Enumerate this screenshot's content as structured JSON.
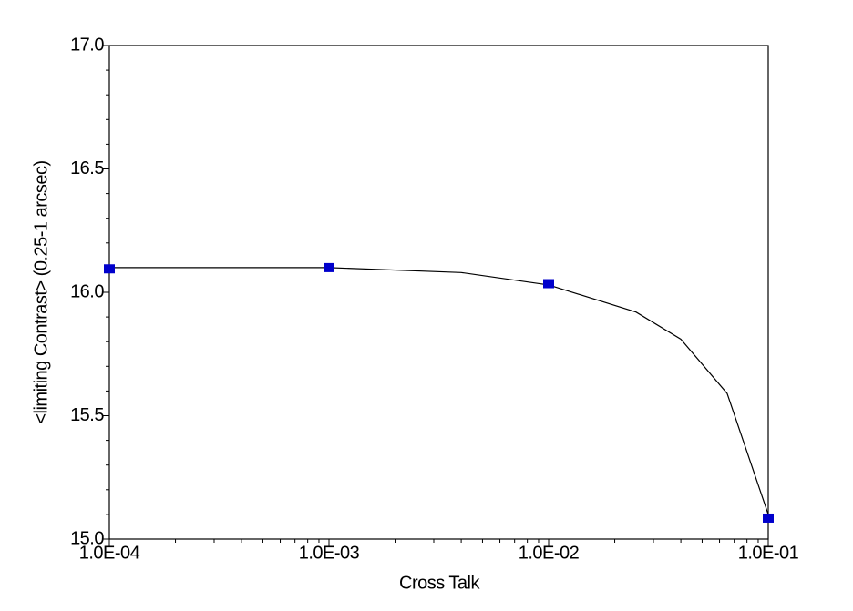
{
  "chart_data": {
    "type": "line",
    "x_label": "Cross Talk",
    "y_label": "<limiting Contrast> (0.25-1 arcsec)",
    "xscale": "log",
    "xlim": [
      0.0001,
      0.1
    ],
    "ylim": [
      15.0,
      17.0
    ],
    "xticks": [
      {
        "value": 0.0001,
        "label": "1.0E-04"
      },
      {
        "value": 0.001,
        "label": "1.0E-03"
      },
      {
        "value": 0.01,
        "label": "1.0E-02"
      },
      {
        "value": 0.1,
        "label": "1.0E-01"
      }
    ],
    "yticks": [
      {
        "value": 15.0,
        "label": "15.0"
      },
      {
        "value": 15.5,
        "label": "15.5"
      },
      {
        "value": 16.0,
        "label": "16.0"
      },
      {
        "value": 16.5,
        "label": "16.5"
      },
      {
        "value": 17.0,
        "label": "17.0"
      }
    ],
    "minor_ticks": true,
    "series": [
      {
        "color": "#000000",
        "marker": false,
        "x": [
          0.0001,
          0.001,
          0.004,
          0.01,
          0.025,
          0.04,
          0.065,
          0.1
        ],
        "values": [
          16.1,
          16.1,
          16.08,
          16.03,
          15.92,
          15.81,
          15.59,
          15.1
        ]
      },
      {
        "color": "#0000cc",
        "marker": true,
        "line": false,
        "x": [
          0.0001,
          0.001,
          0.01,
          0.1
        ],
        "values": [
          16.095,
          16.1,
          16.035,
          15.085
        ]
      }
    ]
  }
}
